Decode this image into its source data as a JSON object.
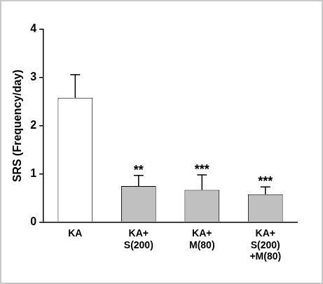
{
  "chart_data": {
    "type": "bar",
    "y_label": "SRS (Frequency/day)",
    "categories": [
      "KA",
      "KA+\nS(200)",
      "KA+\nM(80)",
      "KA+\nS(200)\n+M(80)"
    ],
    "values": [
      2.58,
      0.75,
      0.67,
      0.58
    ],
    "errors": [
      0.48,
      0.22,
      0.31,
      0.15
    ],
    "significance": [
      null,
      "**",
      "***",
      "***"
    ],
    "colors": [
      "#ffffff",
      "#c0c0c0",
      "#c0c0c0",
      "#c0c0c0"
    ],
    "ylim": [
      0,
      4
    ],
    "yticks": [
      0,
      1,
      2,
      3,
      4
    ],
    "grid": false
  }
}
